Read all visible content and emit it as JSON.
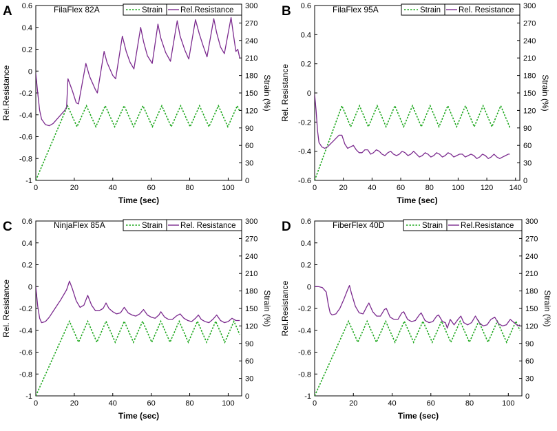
{
  "chart_data": [
    {
      "type": "line",
      "panel_label": "A",
      "title": "FilaFlex 82A",
      "xlabel": "Time (sec)",
      "ylabel": "Rel.Resistance",
      "y2label": "Strain (%)",
      "xlim": [
        0,
        107
      ],
      "ylim": [
        -1,
        0.6
      ],
      "y2lim": [
        0,
        300
      ],
      "xticks": [
        0,
        20,
        40,
        60,
        80,
        100
      ],
      "yticks": [
        "-1",
        "-0.8",
        "-0.6",
        "-0.4",
        "-0.2",
        "0",
        "0.2",
        "0.4",
        "0.6"
      ],
      "y2ticks": [
        "0",
        "30",
        "60",
        "90",
        "120",
        "150",
        "180",
        "210",
        "240",
        "270",
        "300"
      ],
      "legend": [
        "Strain",
        "Rel.Resistance"
      ],
      "strain": {
        "ramp_end": 16.5,
        "period": 9.8,
        "high": 128,
        "low": 92,
        "end": 106
      },
      "resistance": {
        "points": [
          [
            0,
            -0.02
          ],
          [
            1,
            -0.2
          ],
          [
            2,
            -0.36
          ],
          [
            3,
            -0.44
          ],
          [
            5,
            -0.49
          ],
          [
            7,
            -0.5
          ],
          [
            9,
            -0.48
          ],
          [
            12,
            -0.42
          ],
          [
            15,
            -0.36
          ],
          [
            16,
            -0.33
          ],
          [
            16.7,
            -0.07
          ],
          [
            19,
            -0.18
          ],
          [
            21,
            -0.29
          ],
          [
            22.2,
            -0.3
          ],
          [
            26,
            0.07
          ],
          [
            28,
            -0.05
          ],
          [
            31,
            -0.17
          ],
          [
            32,
            -0.2
          ],
          [
            35.5,
            0.18
          ],
          [
            37,
            0.08
          ],
          [
            40,
            -0.04
          ],
          [
            41.5,
            -0.07
          ],
          [
            45,
            0.32
          ],
          [
            47,
            0.18
          ],
          [
            49,
            0.08
          ],
          [
            51,
            0.02
          ],
          [
            54.5,
            0.4
          ],
          [
            56,
            0.27
          ],
          [
            58,
            0.14
          ],
          [
            60.5,
            0.07
          ],
          [
            63.5,
            0.43
          ],
          [
            65,
            0.3
          ],
          [
            67.5,
            0.17
          ],
          [
            70,
            0.09
          ],
          [
            73.5,
            0.46
          ],
          [
            75,
            0.32
          ],
          [
            77.5,
            0.19
          ],
          [
            79.5,
            0.11
          ],
          [
            83,
            0.47
          ],
          [
            85,
            0.34
          ],
          [
            87,
            0.23
          ],
          [
            89,
            0.13
          ],
          [
            92.5,
            0.48
          ],
          [
            94,
            0.35
          ],
          [
            96,
            0.22
          ],
          [
            98,
            0.16
          ],
          [
            101.5,
            0.49
          ],
          [
            103,
            0.3
          ],
          [
            104,
            0.18
          ],
          [
            105,
            0.2
          ],
          [
            106,
            0.12
          ]
        ]
      }
    },
    {
      "type": "line",
      "panel_label": "B",
      "title": "FilaFlex 95A",
      "xlabel": "Time (sec)",
      "ylabel": "Rel. Resistance",
      "y2label": "Strain (%)",
      "xlim": [
        0,
        143
      ],
      "ylim": [
        -0.6,
        0.6
      ],
      "y2lim": [
        0,
        300
      ],
      "xticks": [
        0,
        20,
        40,
        60,
        80,
        100,
        120,
        140
      ],
      "yticks": [
        "-0.6",
        "-0.4",
        "-0.2",
        "0",
        "0.2",
        "0.4",
        "0.6"
      ],
      "y2ticks": [
        "0",
        "30",
        "60",
        "90",
        "120",
        "150",
        "180",
        "210",
        "240",
        "270",
        "300"
      ],
      "legend": [
        "Strain",
        "Rel. Resistance"
      ],
      "strain": {
        "ramp_end": 19,
        "period": 12.3,
        "high": 128,
        "low": 92,
        "end": 136
      },
      "resistance": {
        "points": [
          [
            0,
            -0.01
          ],
          [
            1,
            -0.12
          ],
          [
            2,
            -0.26
          ],
          [
            3,
            -0.34
          ],
          [
            5,
            -0.37
          ],
          [
            7,
            -0.38
          ],
          [
            9,
            -0.37
          ],
          [
            11,
            -0.35
          ],
          [
            13,
            -0.33
          ],
          [
            15,
            -0.31
          ],
          [
            17,
            -0.29
          ],
          [
            19,
            -0.29
          ],
          [
            21,
            -0.35
          ],
          [
            23,
            -0.38
          ],
          [
            25,
            -0.37
          ],
          [
            27,
            -0.36
          ],
          [
            29,
            -0.39
          ],
          [
            31,
            -0.41
          ],
          [
            33,
            -0.41
          ],
          [
            35,
            -0.39
          ],
          [
            37,
            -0.39
          ],
          [
            39,
            -0.42
          ],
          [
            41,
            -0.41
          ],
          [
            43,
            -0.39
          ],
          [
            45,
            -0.4
          ],
          [
            47,
            -0.42
          ],
          [
            49,
            -0.43
          ],
          [
            51,
            -0.41
          ],
          [
            53,
            -0.4
          ],
          [
            55,
            -0.42
          ],
          [
            57,
            -0.43
          ],
          [
            59,
            -0.42
          ],
          [
            61,
            -0.4
          ],
          [
            63,
            -0.41
          ],
          [
            65,
            -0.43
          ],
          [
            67,
            -0.42
          ],
          [
            69,
            -0.4
          ],
          [
            71,
            -0.42
          ],
          [
            73,
            -0.44
          ],
          [
            75,
            -0.43
          ],
          [
            77,
            -0.41
          ],
          [
            79,
            -0.42
          ],
          [
            81,
            -0.44
          ],
          [
            83,
            -0.43
          ],
          [
            85,
            -0.41
          ],
          [
            87,
            -0.42
          ],
          [
            89,
            -0.44
          ],
          [
            91,
            -0.43
          ],
          [
            93,
            -0.41
          ],
          [
            95,
            -0.42
          ],
          [
            97,
            -0.44
          ],
          [
            99,
            -0.43
          ],
          [
            101,
            -0.42
          ],
          [
            103,
            -0.42
          ],
          [
            105,
            -0.44
          ],
          [
            107,
            -0.43
          ],
          [
            109,
            -0.42
          ],
          [
            111,
            -0.43
          ],
          [
            113,
            -0.45
          ],
          [
            115,
            -0.44
          ],
          [
            117,
            -0.42
          ],
          [
            119,
            -0.43
          ],
          [
            121,
            -0.45
          ],
          [
            123,
            -0.44
          ],
          [
            125,
            -0.42
          ],
          [
            127,
            -0.44
          ],
          [
            129,
            -0.45
          ],
          [
            131,
            -0.44
          ],
          [
            133,
            -0.43
          ],
          [
            135,
            -0.42
          ],
          [
            136,
            -0.42
          ]
        ]
      }
    },
    {
      "type": "line",
      "panel_label": "C",
      "title": "NinjaFlex 85A",
      "xlabel": "Time (sec)",
      "ylabel": "Rel. Resistance",
      "y2label": "Strain (%)",
      "xlim": [
        0,
        107
      ],
      "ylim": [
        -1,
        0.6
      ],
      "y2lim": [
        0,
        300
      ],
      "xticks": [
        0,
        20,
        40,
        60,
        80,
        100
      ],
      "yticks": [
        "-1",
        "-0.8",
        "-0.6",
        "-0.4",
        "-0.2",
        "0",
        "0.2",
        "0.4",
        "0.6"
      ],
      "y2ticks": [
        "0",
        "30",
        "60",
        "90",
        "120",
        "150",
        "180",
        "210",
        "240",
        "270",
        "300"
      ],
      "legend": [
        "Strain",
        "Rel. Resistance"
      ],
      "strain": {
        "ramp_end": 17.5,
        "period": 9.5,
        "high": 128,
        "low": 92,
        "end": 106
      },
      "resistance": {
        "points": [
          [
            0,
            0
          ],
          [
            1,
            -0.18
          ],
          [
            2,
            -0.29
          ],
          [
            3,
            -0.33
          ],
          [
            5,
            -0.32
          ],
          [
            7,
            -0.28
          ],
          [
            10,
            -0.2
          ],
          [
            13,
            -0.12
          ],
          [
            16,
            -0.03
          ],
          [
            17.5,
            0.05
          ],
          [
            19,
            -0.02
          ],
          [
            21,
            -0.13
          ],
          [
            23,
            -0.19
          ],
          [
            25,
            -0.17
          ],
          [
            27,
            -0.08
          ],
          [
            29,
            -0.17
          ],
          [
            31,
            -0.22
          ],
          [
            33,
            -0.22
          ],
          [
            35,
            -0.2
          ],
          [
            36.5,
            -0.15
          ],
          [
            38,
            -0.2
          ],
          [
            40,
            -0.23
          ],
          [
            42,
            -0.25
          ],
          [
            44,
            -0.24
          ],
          [
            46,
            -0.19
          ],
          [
            48,
            -0.24
          ],
          [
            50,
            -0.26
          ],
          [
            52,
            -0.27
          ],
          [
            54,
            -0.25
          ],
          [
            56,
            -0.21
          ],
          [
            58,
            -0.26
          ],
          [
            60,
            -0.28
          ],
          [
            62,
            -0.29
          ],
          [
            64,
            -0.26
          ],
          [
            65,
            -0.23
          ],
          [
            67,
            -0.28
          ],
          [
            69,
            -0.3
          ],
          [
            71,
            -0.3
          ],
          [
            73,
            -0.27
          ],
          [
            75,
            -0.25
          ],
          [
            77,
            -0.29
          ],
          [
            79,
            -0.31
          ],
          [
            81,
            -0.32
          ],
          [
            83,
            -0.29
          ],
          [
            84.5,
            -0.26
          ],
          [
            86,
            -0.3
          ],
          [
            88,
            -0.32
          ],
          [
            90,
            -0.33
          ],
          [
            92,
            -0.3
          ],
          [
            94,
            -0.26
          ],
          [
            96,
            -0.31
          ],
          [
            98,
            -0.33
          ],
          [
            100,
            -0.32
          ],
          [
            102,
            -0.29
          ],
          [
            104,
            -0.31
          ],
          [
            106,
            -0.31
          ]
        ]
      }
    },
    {
      "type": "line",
      "panel_label": "D",
      "title": "FiberFlex 40D",
      "xlabel": "Time (sec)",
      "ylabel": "Rel.Resistance",
      "y2label": "Strain (%)",
      "xlim": [
        0,
        107
      ],
      "ylim": [
        -1,
        0.6
      ],
      "y2lim": [
        0,
        300
      ],
      "xticks": [
        0,
        20,
        40,
        60,
        80,
        100
      ],
      "yticks": [
        "-1",
        "-0.8",
        "-0.6",
        "-0.4",
        "-0.2",
        "0",
        "0.2",
        "0.4",
        "0.6"
      ],
      "y2ticks": [
        "0",
        "30",
        "60",
        "90",
        "120",
        "150",
        "180",
        "210",
        "240",
        "270",
        "300"
      ],
      "legend": [
        "Strain",
        "Rel.Resistance"
      ],
      "strain": {
        "ramp_end": 17.5,
        "period": 9.6,
        "high": 128,
        "low": 92,
        "end": 106
      },
      "resistance": {
        "points": [
          [
            0,
            0
          ],
          [
            2,
            0
          ],
          [
            4,
            -0.01
          ],
          [
            6,
            -0.05
          ],
          [
            7,
            -0.16
          ],
          [
            8,
            -0.24
          ],
          [
            9,
            -0.26
          ],
          [
            11,
            -0.25
          ],
          [
            13,
            -0.2
          ],
          [
            15,
            -0.12
          ],
          [
            17,
            -0.03
          ],
          [
            18,
            0.01
          ],
          [
            19,
            -0.06
          ],
          [
            21,
            -0.18
          ],
          [
            23,
            -0.24
          ],
          [
            25,
            -0.25
          ],
          [
            27,
            -0.18
          ],
          [
            28,
            -0.15
          ],
          [
            30,
            -0.23
          ],
          [
            32,
            -0.27
          ],
          [
            34,
            -0.27
          ],
          [
            36,
            -0.21
          ],
          [
            37,
            -0.2
          ],
          [
            39,
            -0.28
          ],
          [
            41,
            -0.3
          ],
          [
            43,
            -0.3
          ],
          [
            45,
            -0.24
          ],
          [
            46,
            -0.23
          ],
          [
            48,
            -0.3
          ],
          [
            50,
            -0.32
          ],
          [
            52,
            -0.31
          ],
          [
            54,
            -0.26
          ],
          [
            55,
            -0.24
          ],
          [
            57,
            -0.31
          ],
          [
            59,
            -0.33
          ],
          [
            61,
            -0.32
          ],
          [
            63,
            -0.27
          ],
          [
            64,
            -0.26
          ],
          [
            66,
            -0.32
          ],
          [
            67.5,
            -0.33
          ],
          [
            68.5,
            -0.38
          ],
          [
            70,
            -0.3
          ],
          [
            72,
            -0.35
          ],
          [
            74,
            -0.3
          ],
          [
            75.5,
            -0.27
          ],
          [
            77,
            -0.33
          ],
          [
            79,
            -0.35
          ],
          [
            81,
            -0.33
          ],
          [
            83,
            -0.27
          ],
          [
            85,
            -0.33
          ],
          [
            87,
            -0.36
          ],
          [
            89,
            -0.35
          ],
          [
            91,
            -0.3
          ],
          [
            93,
            -0.28
          ],
          [
            95,
            -0.34
          ],
          [
            97,
            -0.36
          ],
          [
            99,
            -0.35
          ],
          [
            101,
            -0.3
          ],
          [
            103,
            -0.33
          ],
          [
            105,
            -0.36
          ],
          [
            106,
            -0.35
          ]
        ]
      }
    }
  ]
}
